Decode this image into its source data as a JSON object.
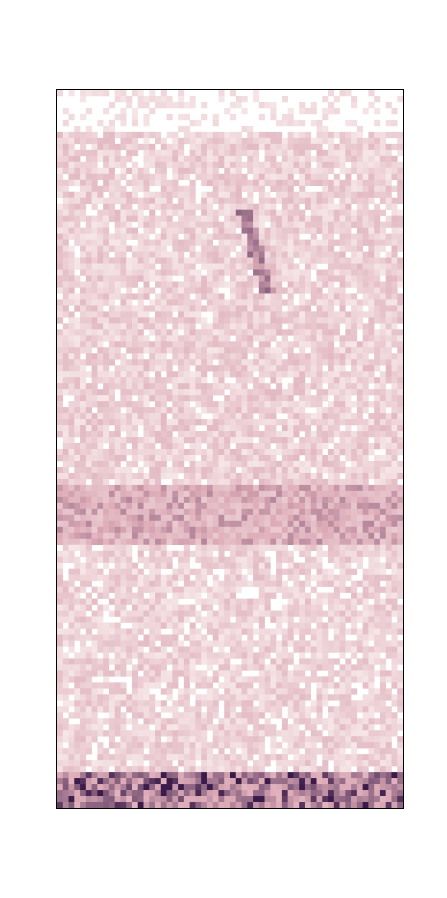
{
  "chart_data": {
    "type": "heatmap",
    "title": "",
    "xlabel": "",
    "ylabel": "",
    "axis_ticks": "none",
    "grid": false,
    "legend": "none",
    "colormap": "white-to-dark-purple",
    "colors": {
      "low": "#fbf2f1",
      "mid": "#dcaab6",
      "high": "#3a1b4a",
      "frame": "#000000",
      "background": "#ffffff"
    },
    "columns": 60,
    "rows": 120,
    "value_range": [
      0,
      1
    ],
    "row_band_profile": [
      {
        "row_from": 0,
        "row_to": 6,
        "intensity": 0.02
      },
      {
        "row_from": 7,
        "row_to": 65,
        "intensity": 0.22
      },
      {
        "row_from": 66,
        "row_to": 75,
        "intensity": 0.45
      },
      {
        "row_from": 76,
        "row_to": 113,
        "intensity": 0.2
      },
      {
        "row_from": 114,
        "row_to": 119,
        "intensity": 0.6
      }
    ],
    "features": [
      {
        "kind": "diagonal-streak",
        "col_start": 32,
        "col_end": 36,
        "row_start": 20,
        "row_end": 33,
        "intensity": 0.75
      }
    ],
    "notes_visible_text": []
  }
}
